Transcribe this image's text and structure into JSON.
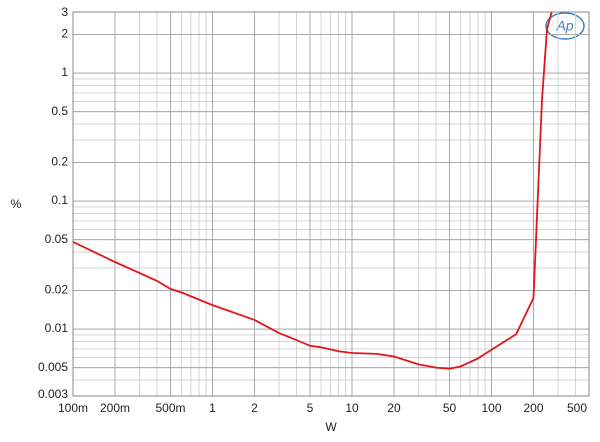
{
  "chart_data": {
    "type": "line",
    "x_label": "W",
    "y_label": "%",
    "logo": "Ap",
    "xlog": true,
    "ylog": true,
    "grid": true,
    "xlim": [
      0.1,
      500
    ],
    "ylim": [
      0.003,
      3
    ],
    "xticks": [
      {
        "value": 0.1,
        "label": "100m"
      },
      {
        "value": 0.2,
        "label": "200m"
      },
      {
        "value": 0.5,
        "label": "500m"
      },
      1,
      2,
      5,
      10,
      20,
      50,
      100,
      200,
      500
    ],
    "yticks": [
      3,
      2,
      1,
      0.5,
      0.2,
      0.1,
      0.05,
      0.02,
      0.01,
      0.005,
      0.003
    ],
    "x": [
      0.1,
      0.2,
      0.4,
      0.5,
      0.6,
      1,
      2,
      3,
      4,
      5,
      6,
      8,
      10,
      15,
      20,
      30,
      40,
      50,
      60,
      80,
      100,
      150,
      200,
      230,
      250,
      270
    ],
    "series": [
      {
        "color": "#e0161b",
        "values": [
          0.048,
          0.0334,
          0.0238,
          0.0206,
          0.0193,
          0.0154,
          0.0118,
          0.0093,
          0.0082,
          0.0074,
          0.0072,
          0.0067,
          0.0065,
          0.0064,
          0.0061,
          0.0053,
          0.005,
          0.0049,
          0.0051,
          0.0059,
          0.0069,
          0.0091,
          0.0175,
          0.62,
          2.2,
          3
        ]
      }
    ]
  }
}
